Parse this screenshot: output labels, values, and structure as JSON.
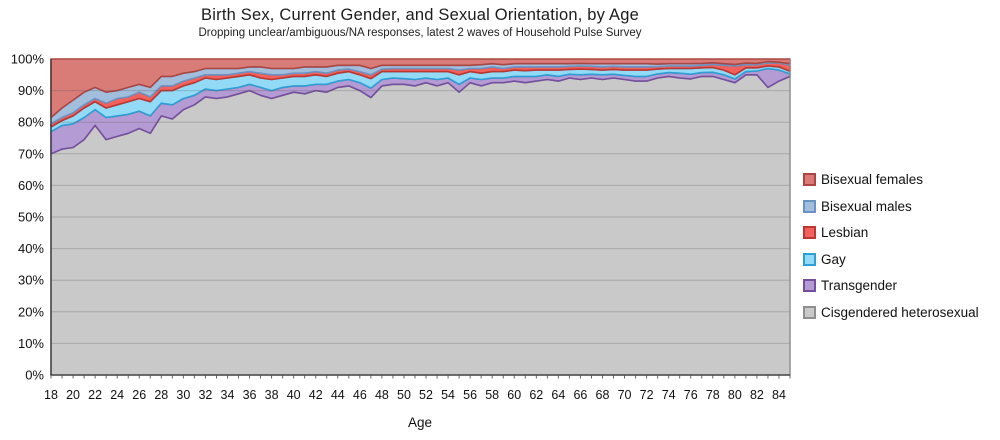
{
  "title": "Birth Sex, Current Gender, and Sexual Orientation, by Age",
  "subtitle": "Dropping unclear/ambiguous/NA responses, latest 2 waves of Household Pulse Survey",
  "chart_data": {
    "type": "area",
    "stacked": true,
    "units": "percent",
    "title": "Birth Sex, Current Gender, and Sexual Orientation, by Age",
    "subtitle": "Dropping unclear/ambiguous/NA responses, latest 2 waves of Household Pulse Survey",
    "xlabel": "Age",
    "ylabel": "",
    "ylim": [
      0,
      100
    ],
    "grid": true,
    "legend_position": "right",
    "legend_order": "top-of-stack-first",
    "x": [
      18,
      19,
      20,
      21,
      22,
      23,
      24,
      25,
      26,
      27,
      28,
      29,
      30,
      31,
      32,
      33,
      34,
      35,
      36,
      37,
      38,
      39,
      40,
      41,
      42,
      43,
      44,
      45,
      46,
      47,
      48,
      49,
      50,
      51,
      52,
      53,
      54,
      55,
      56,
      57,
      58,
      59,
      60,
      61,
      62,
      63,
      64,
      65,
      66,
      67,
      68,
      69,
      70,
      71,
      72,
      73,
      74,
      75,
      76,
      77,
      78,
      79,
      80,
      81,
      82,
      83,
      84,
      85
    ],
    "x_tick_labels": [
      18,
      20,
      22,
      24,
      26,
      28,
      30,
      32,
      34,
      36,
      38,
      40,
      42,
      44,
      46,
      48,
      50,
      52,
      54,
      56,
      58,
      60,
      62,
      64,
      66,
      68,
      70,
      72,
      74,
      76,
      78,
      80,
      82,
      84
    ],
    "y_ticks": [
      "0%",
      "10%",
      "20%",
      "30%",
      "40%",
      "50%",
      "60%",
      "70%",
      "80%",
      "90%",
      "100%"
    ],
    "series": [
      {
        "id": "cisgendered-heterosexual",
        "name": "Cisgendered heterosexual",
        "fill": "#c9c9c9",
        "stroke": "#8f8f8f",
        "values": [
          70,
          71.5,
          72,
          74.5,
          79,
          74.5,
          75.5,
          76.5,
          78,
          76.5,
          82,
          81,
          84,
          85.5,
          88,
          87.5,
          88,
          89,
          90,
          88.5,
          87.5,
          88.5,
          89.5,
          89,
          90,
          89.5,
          91,
          91.5,
          90,
          87.8,
          91.5,
          92,
          92,
          91.5,
          92.5,
          91.5,
          92.5,
          89.5,
          92.5,
          91.5,
          92.5,
          92.5,
          93,
          92.5,
          93,
          93.5,
          93,
          94,
          93.5,
          94,
          93.5,
          94,
          93.5,
          93,
          93,
          94,
          94.5,
          94,
          93.7,
          94.5,
          94.5,
          93.5,
          92.5,
          95,
          95,
          91,
          93,
          94.5
        ]
      },
      {
        "id": "transgender",
        "name": "Transgender",
        "fill": "#b49bd3",
        "stroke": "#744f9e",
        "values": [
          7,
          7.5,
          7.5,
          7,
          5,
          7,
          6.5,
          6,
          5.5,
          5.5,
          4,
          4.5,
          3.5,
          3,
          2.5,
          2.5,
          2.5,
          2,
          2,
          2.5,
          2.5,
          2.5,
          2,
          2.5,
          2,
          2.5,
          2,
          2,
          2.5,
          3,
          2,
          2,
          1.8,
          2,
          1.5,
          2,
          1.5,
          2.5,
          1.5,
          2,
          1.5,
          1.5,
          1.5,
          2,
          1.5,
          1.5,
          1.5,
          1.2,
          1.5,
          1.2,
          1.5,
          1.2,
          1.3,
          1.5,
          1.5,
          1.3,
          1.2,
          1.5,
          1.5,
          1.2,
          1.3,
          1.5,
          1.2,
          1,
          1.2,
          6,
          3.5,
          0.8
        ]
      },
      {
        "id": "gay",
        "name": "Gay",
        "fill": "#93daf6",
        "stroke": "#2e9fd4",
        "values": [
          1.5,
          1.5,
          2.5,
          3,
          2.5,
          3,
          3.5,
          4,
          4,
          4.5,
          4,
          4.5,
          4,
          4,
          3.5,
          3.5,
          3.5,
          3.5,
          3,
          3,
          3.5,
          3,
          3,
          3,
          3,
          2.5,
          2.5,
          2.5,
          2.5,
          3,
          2.5,
          2,
          2.2,
          2.5,
          2,
          2.5,
          2,
          3,
          2,
          2,
          2,
          2,
          2,
          1.8,
          2,
          1.5,
          2,
          1.5,
          1.8,
          1.5,
          1.5,
          1.5,
          1.7,
          2,
          2,
          1.5,
          1.3,
          1.5,
          1.8,
          1.5,
          1.5,
          1.5,
          1.3,
          1.2,
          1,
          0.8,
          1,
          0.8
        ]
      },
      {
        "id": "lesbian",
        "name": "Lesbian",
        "fill": "#f2615b",
        "stroke": "#bc3732",
        "values": [
          1,
          1,
          1,
          1,
          1,
          1.5,
          2,
          1.5,
          2,
          1.5,
          1.5,
          1.5,
          1.5,
          1.5,
          1,
          1.5,
          1,
          1,
          1,
          1.5,
          1.5,
          1,
          1,
          1,
          1,
          1,
          1,
          0.8,
          1,
          1.2,
          0.8,
          1,
          1,
          1,
          1,
          1,
          1,
          1.5,
          1,
          1.5,
          1.5,
          1,
          1,
          1.2,
          1,
          1,
          1,
          1,
          1,
          1,
          1,
          1,
          1,
          1,
          1,
          0.8,
          0.8,
          0.8,
          0.8,
          0.8,
          1,
          1.5,
          2.8,
          1,
          1,
          1,
          1.2,
          2
        ]
      },
      {
        "id": "bisexual-males",
        "name": "Bisexual males",
        "fill": "#a2bedd",
        "stroke": "#6b93c4",
        "values": [
          2,
          3,
          4,
          4,
          3.5,
          3.5,
          2.5,
          3,
          2.5,
          3,
          3,
          3,
          2.5,
          2,
          2,
          2,
          2,
          1.5,
          1.5,
          2,
          2,
          2,
          1.5,
          2,
          1.5,
          2,
          1.5,
          1.2,
          2,
          2,
          1.2,
          1,
          1,
          1,
          1,
          1,
          1,
          1.5,
          1,
          1.2,
          1,
          1.2,
          1,
          1,
          1,
          1,
          1,
          0.8,
          0.8,
          0.8,
          1,
          0.8,
          1,
          1,
          1,
          0.8,
          0.7,
          0.7,
          0.7,
          0.6,
          0.5,
          0.5,
          0.5,
          0.5,
          0.4,
          0.4,
          0.3,
          0.4
        ]
      },
      {
        "id": "bisexual-females",
        "name": "Bisexual females",
        "fill": "#d97c77",
        "stroke": "#ab4642",
        "values": [
          18.5,
          15.5,
          13,
          10.5,
          9,
          10.5,
          10,
          9,
          8,
          9,
          5.5,
          5.5,
          4.5,
          4,
          3,
          3,
          3,
          3,
          2.5,
          2.5,
          3,
          3,
          3,
          2.5,
          2.5,
          2.5,
          2,
          2,
          2,
          3,
          2,
          2,
          2,
          2,
          2,
          2,
          2,
          2,
          2,
          1.8,
          1.5,
          1.8,
          1.5,
          1.5,
          1.5,
          1.5,
          1.5,
          1.5,
          1.4,
          1.5,
          1.5,
          1.5,
          1.5,
          1.5,
          1.5,
          1.6,
          1.5,
          1.5,
          1.5,
          1.4,
          1.2,
          1.5,
          1.7,
          1.3,
          1.4,
          0.8,
          1,
          1.5
        ]
      }
    ]
  }
}
